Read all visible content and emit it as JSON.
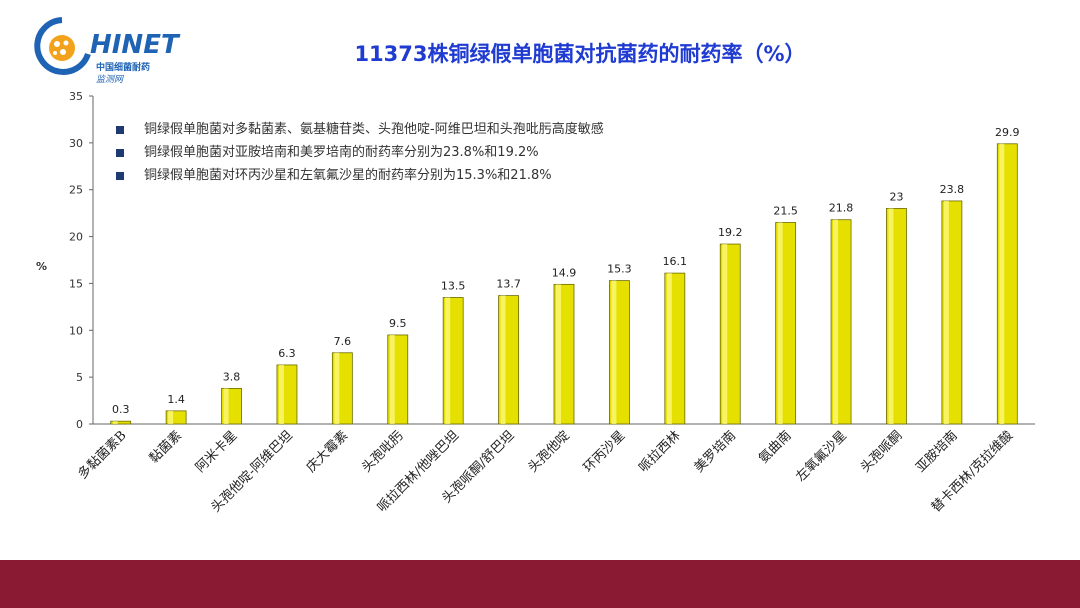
{
  "logo": {
    "brand": "HINET",
    "sub_cn": "中国细菌耐药",
    "sub_cn2": "监测网"
  },
  "title": "11373株铜绿假单胞菌对抗菌药的耐药率（%）",
  "notes": [
    "铜绿假单胞菌对多黏菌素、氨基糖苷类、头孢他啶-阿维巴坦和头孢吡肟高度敏感",
    "铜绿假单胞菌对亚胺培南和美罗培南的耐药率分别为23.8%和19.2%",
    "铜绿假单胞菌对环丙沙星和左氧氟沙星的耐药率分别为15.3%和21.8%"
  ],
  "colors": {
    "bar": "#e6e000",
    "bar_edge": "#6b6a00",
    "title": "#1f3bd1",
    "band": "#8a1a33"
  },
  "chart_data": {
    "type": "bar",
    "title": "11373株铜绿假单胞菌对抗菌药的耐药率（%）",
    "xlabel": "",
    "ylabel": "%",
    "ylim": [
      0,
      35
    ],
    "yticks": [
      0,
      5,
      10,
      15,
      20,
      25,
      30,
      35
    ],
    "categories": [
      "多黏菌素B",
      "黏菌素",
      "阿米卡星",
      "头孢他啶-阿维巴坦",
      "庆大霉素",
      "头孢吡肟",
      "哌拉西林/他唑巴坦",
      "头孢哌酮/舒巴坦",
      "头孢他啶",
      "环丙沙星",
      "哌拉西林",
      "美罗培南",
      "氨曲南",
      "左氧氟沙星",
      "头孢哌酮",
      "亚胺培南",
      "替卡西林/克拉维酸"
    ],
    "values": [
      0.3,
      1.4,
      3.8,
      6.3,
      7.6,
      9.5,
      13.5,
      13.7,
      14.9,
      15.3,
      16.1,
      19.2,
      21.5,
      21.8,
      23,
      23.8,
      29.9
    ],
    "data_labels": [
      "0.3",
      "1.4",
      "3.8",
      "6.3",
      "7.6",
      "9.5",
      "13.5",
      "13.7",
      "14.9",
      "15.3",
      "16.1",
      "19.2",
      "21.5",
      "21.8",
      "23",
      "23.8",
      "29.9"
    ],
    "grid": false,
    "legend": "none"
  }
}
